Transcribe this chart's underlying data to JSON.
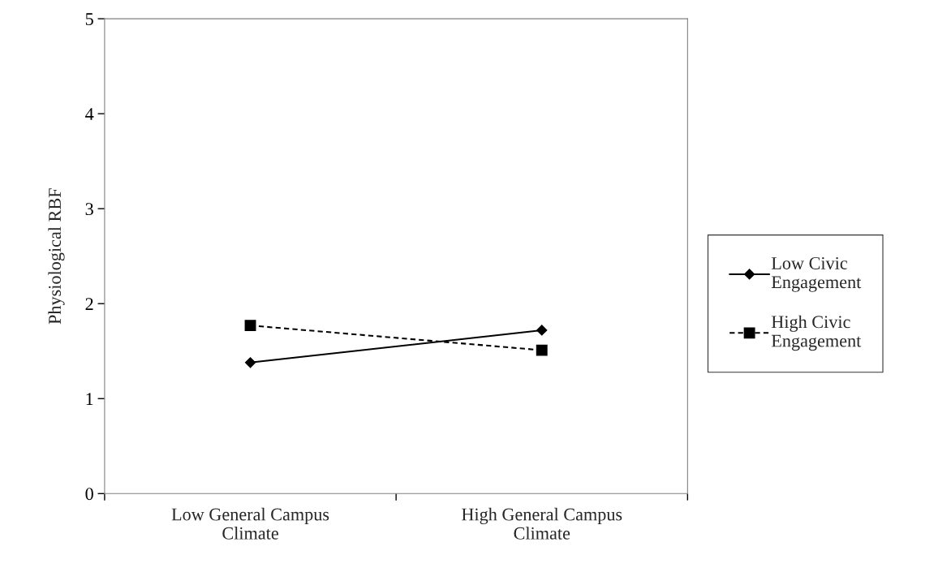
{
  "chart_data": {
    "type": "line",
    "ylabel": "Physiological RBF",
    "categories": [
      "Low General Campus Climate",
      "High General Campus Climate"
    ],
    "series": [
      {
        "name": "Low Civic Engagement",
        "color": "#000000",
        "values": [
          1.38,
          1.72
        ],
        "marker": "diamond",
        "line_style": "solid"
      },
      {
        "name": "High Civic Engagement",
        "color": "#000000",
        "values": [
          1.77,
          1.51
        ],
        "marker": "square",
        "line_style": "dashed"
      }
    ],
    "ylim": [
      0,
      5
    ],
    "yticks": [
      0,
      1,
      2,
      3,
      4,
      5
    ],
    "grid": false,
    "legend": "right"
  }
}
